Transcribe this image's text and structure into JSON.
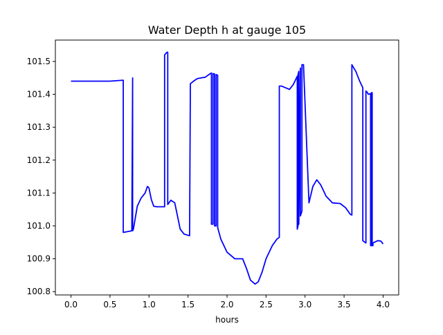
{
  "chart_data": {
    "type": "line",
    "title": "Water Depth h at gauge 105",
    "xlabel": "hours",
    "ylabel": "",
    "xlim": [
      -0.2,
      4.2
    ],
    "ylim": [
      100.79,
      101.565
    ],
    "xticks": [
      0.0,
      0.5,
      1.0,
      1.5,
      2.0,
      2.5,
      3.0,
      3.5,
      4.0
    ],
    "xtick_labels": [
      "0.0",
      "0.5",
      "1.0",
      "1.5",
      "2.0",
      "2.5",
      "3.0",
      "3.5",
      "4.0"
    ],
    "yticks": [
      100.8,
      100.9,
      101.0,
      101.1,
      101.2,
      101.3,
      101.4,
      101.5
    ],
    "ytick_labels": [
      "100.8",
      "100.9",
      "101.0",
      "101.1",
      "101.2",
      "101.3",
      "101.4",
      "101.5"
    ],
    "grid": false,
    "series": [
      {
        "name": "",
        "color": "#0000ff",
        "x": [
          0.0,
          0.3,
          0.5,
          0.67,
          0.67,
          0.78,
          0.79,
          0.79,
          0.8,
          0.85,
          0.9,
          0.95,
          0.98,
          1.0,
          1.03,
          1.06,
          1.1,
          1.15,
          1.2,
          1.2,
          1.23,
          1.24,
          1.24,
          1.28,
          1.33,
          1.4,
          1.45,
          1.52,
          1.53,
          1.53,
          1.57,
          1.62,
          1.67,
          1.72,
          1.78,
          1.8,
          1.8,
          1.82,
          1.82,
          1.84,
          1.84,
          1.86,
          1.86,
          1.88,
          1.88,
          1.92,
          2.0,
          2.1,
          2.2,
          2.25,
          2.3,
          2.36,
          2.4,
          2.45,
          2.5,
          2.58,
          2.64,
          2.67,
          2.67,
          2.7,
          2.75,
          2.8,
          2.85,
          2.9,
          2.9,
          2.91,
          2.91,
          2.92,
          2.92,
          2.94,
          2.94,
          2.96,
          2.96,
          2.98,
          3.05,
          3.1,
          3.15,
          3.2,
          3.27,
          3.35,
          3.45,
          3.52,
          3.58,
          3.6,
          3.6,
          3.65,
          3.7,
          3.74,
          3.74,
          3.78,
          3.78,
          3.8,
          3.81,
          3.84,
          3.84,
          3.85,
          3.85,
          3.86,
          3.86,
          3.87,
          3.87,
          3.93,
          3.97,
          4.0
        ],
        "y": [
          101.44,
          101.44,
          101.44,
          101.443,
          100.98,
          100.985,
          101.45,
          100.985,
          100.99,
          101.06,
          101.085,
          101.1,
          101.12,
          101.115,
          101.08,
          101.06,
          101.058,
          101.058,
          101.058,
          101.52,
          101.528,
          101.528,
          101.065,
          101.078,
          101.07,
          100.99,
          100.975,
          100.97,
          101.43,
          101.432,
          101.44,
          101.448,
          101.45,
          101.452,
          101.462,
          101.465,
          101.005,
          101.005,
          101.463,
          101.462,
          101.0,
          101.0,
          101.46,
          101.458,
          100.995,
          100.96,
          100.92,
          100.9,
          100.9,
          100.87,
          100.835,
          100.823,
          100.83,
          100.86,
          100.9,
          100.94,
          100.96,
          100.965,
          101.425,
          101.425,
          101.42,
          101.415,
          101.43,
          101.455,
          100.99,
          101.0,
          101.46,
          101.47,
          101.005,
          101.48,
          101.03,
          101.045,
          101.49,
          101.49,
          101.07,
          101.12,
          101.14,
          101.125,
          101.09,
          101.07,
          101.068,
          101.055,
          101.035,
          101.033,
          101.49,
          101.47,
          101.44,
          101.42,
          100.955,
          100.948,
          101.41,
          101.405,
          101.4,
          101.402,
          100.94,
          100.94,
          101.405,
          101.405,
          100.94,
          100.94,
          100.948,
          100.955,
          100.954,
          100.945
        ]
      }
    ]
  }
}
